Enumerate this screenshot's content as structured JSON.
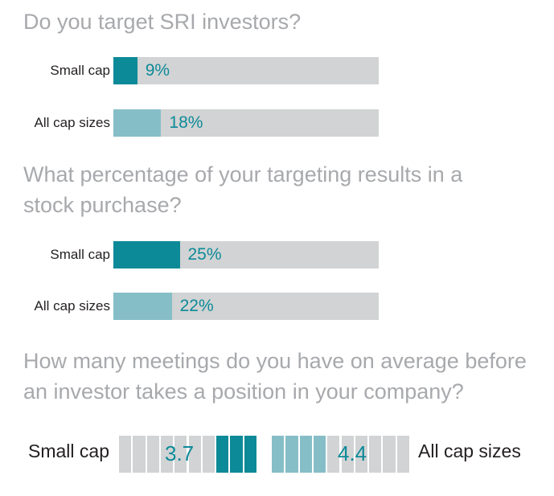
{
  "colors": {
    "small_cap": "#0d8a98",
    "all_cap": "#86bec8",
    "track": "#d1d3d4",
    "text_accent": "#0d8a98",
    "question": "#a7a9ac"
  },
  "chart_data": [
    {
      "type": "bar",
      "title": "Do you target SRI investors?",
      "categories": [
        "Small cap",
        "All cap sizes"
      ],
      "values": [
        9,
        18
      ],
      "value_labels": [
        "9%",
        "18%"
      ],
      "unit": "%",
      "ylim": [
        0,
        100
      ]
    },
    {
      "type": "bar",
      "title": "What percentage of your targeting results in a stock purchase?",
      "categories": [
        "Small cap",
        "All cap sizes"
      ],
      "values": [
        25,
        22
      ],
      "value_labels": [
        "25%",
        "22%"
      ],
      "unit": "%",
      "ylim": [
        0,
        100
      ]
    },
    {
      "type": "bar",
      "title": "How many meetings do you have on average before an investor takes a position in your company?",
      "categories": [
        "Small cap",
        "All cap sizes"
      ],
      "values": [
        3.7,
        4.4
      ],
      "value_labels": [
        "3.7",
        "4.4"
      ],
      "scale_segments": 10
    }
  ]
}
